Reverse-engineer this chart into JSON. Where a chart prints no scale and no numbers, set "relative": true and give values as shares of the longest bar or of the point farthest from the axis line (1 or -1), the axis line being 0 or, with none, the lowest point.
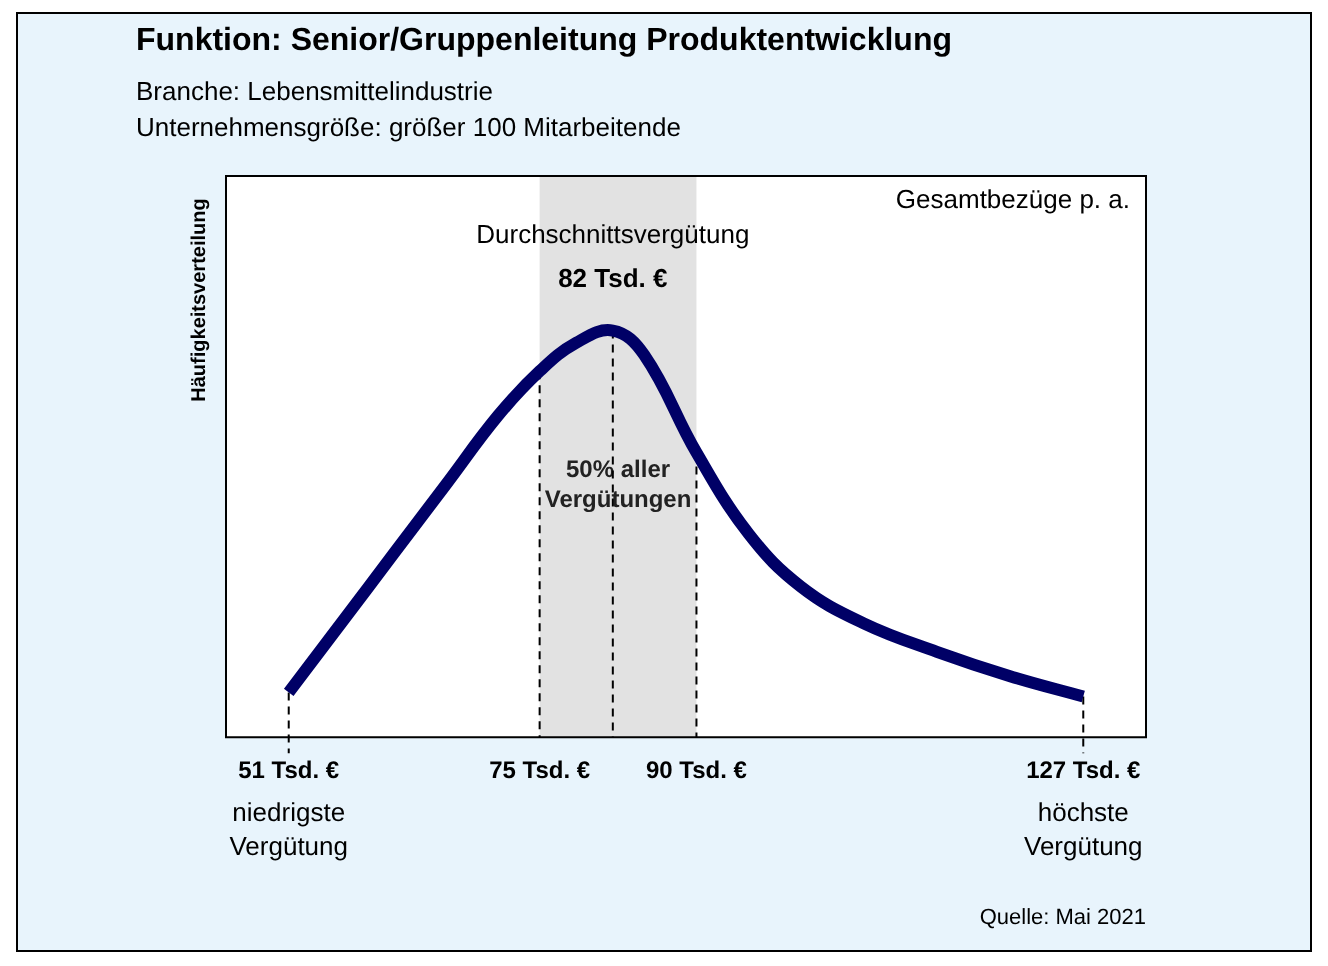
{
  "chart_data": {
    "type": "line",
    "title": "Funktion: Senior/Gruppenleitung Produktentwicklung",
    "subtitle": "Branche: Lebensmittelindustrie\nUnternehmensgröße: größer 100 Mitarbeitende",
    "ylabel": "Häufigkeitsverteilung",
    "relative": true,
    "x": [
      51,
      56,
      61,
      66,
      71,
      75,
      78.5,
      82,
      85,
      90,
      95,
      100,
      106,
      113,
      120,
      127
    ],
    "series": [
      {
        "color": "#000066",
        "values": [
          0.11,
          0.28,
          0.45,
          0.62,
          0.79,
          0.9,
          0.97,
          1,
          0.94,
          0.7,
          0.5,
          0.37,
          0.28,
          0.21,
          0.15,
          0.1
        ]
      }
    ],
    "xlim": [
      45,
      133
    ],
    "xticks": [
      {
        "value": 51,
        "label": "51 Tsd. €"
      },
      {
        "value": 75,
        "label": "75 Tsd. €"
      },
      {
        "value": 90,
        "label": "90 Tsd. €"
      },
      {
        "value": 127,
        "label": "127 Tsd. €"
      }
    ],
    "ref_lines": [
      {
        "axis": "x",
        "value": 51,
        "label": "niedrigste Vergütung",
        "line_style": "dashed"
      },
      {
        "axis": "x",
        "value": 75,
        "line_style": "dashed"
      },
      {
        "axis": "x",
        "value": 82,
        "line_style": "dashed"
      },
      {
        "axis": "x",
        "value": 90,
        "line_style": "dashed"
      },
      {
        "axis": "x",
        "value": 127,
        "label": "höchste Vergütung",
        "line_style": "dashed"
      }
    ],
    "bands": [
      {
        "axis": "x",
        "from": 75,
        "to": 90,
        "label": "50% aller Vergütungen",
        "color": "#bfbfbf"
      }
    ],
    "annotations": [
      "Gesamtbezüge p. a.",
      "Durchschnittsvergütung",
      {
        "text": "82 Tsd. €",
        "x": 82,
        "y": 1
      },
      "Quelle: Mai 2021"
    ],
    "grid": false,
    "legend": false,
    "marker": "none",
    "line_style": "solid"
  }
}
